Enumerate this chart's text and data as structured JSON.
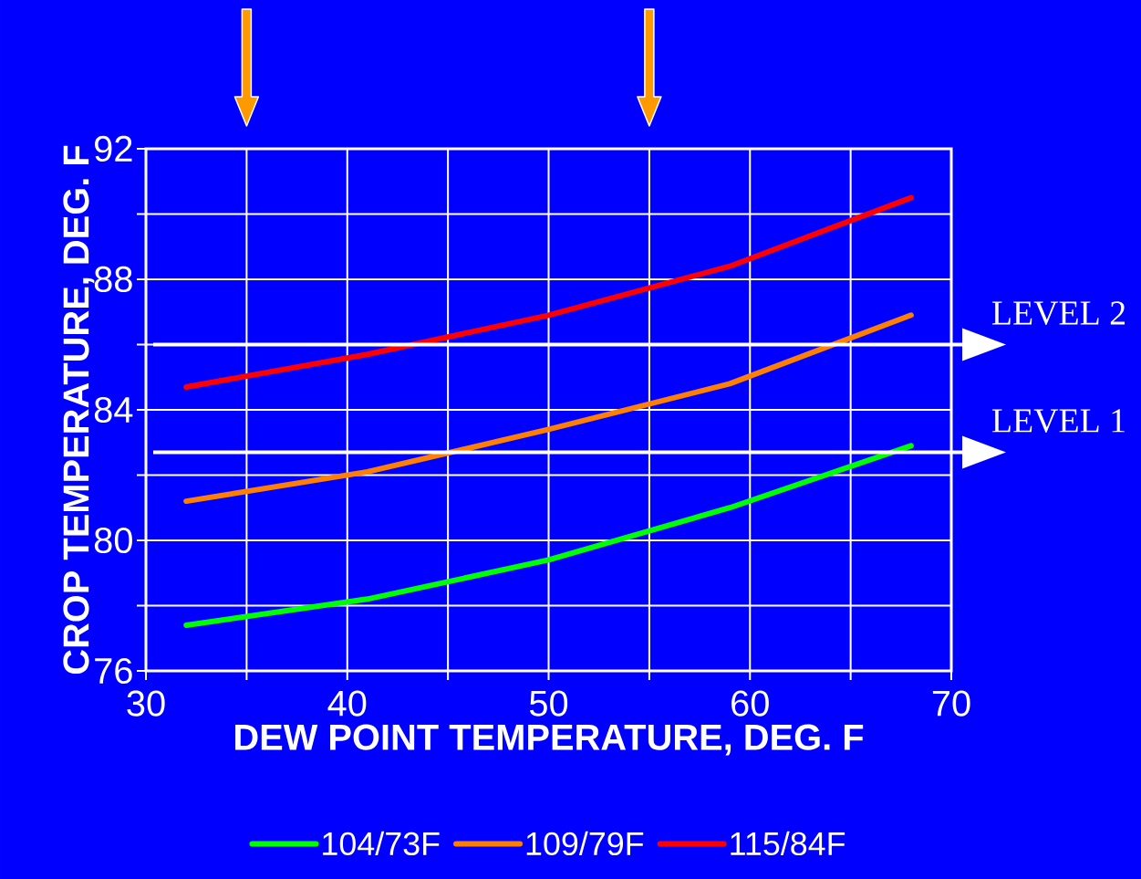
{
  "chart_data": {
    "type": "line",
    "xlabel": "DEW POINT TEMPERATURE, DEG. F",
    "ylabel": "CROP TEMPERATURE, DEG. F",
    "x": [
      32,
      41,
      50,
      59,
      68
    ],
    "series": [
      {
        "name": "104/73F",
        "color": "#00ff00",
        "values": [
          77.4,
          78.2,
          79.4,
          81.0,
          82.9
        ]
      },
      {
        "name": "109/79F",
        "color": "#ff8000",
        "values": [
          81.2,
          82.1,
          83.4,
          84.8,
          86.9
        ]
      },
      {
        "name": "115/84F",
        "color": "#ff0000",
        "values": [
          84.7,
          85.7,
          86.9,
          88.4,
          90.5
        ]
      }
    ],
    "xlim": [
      30,
      70
    ],
    "ylim": [
      76,
      92
    ],
    "xticks": [
      30,
      {
        "value": 35,
        "label": null
      },
      40,
      {
        "value": 45,
        "label": null
      },
      50,
      {
        "value": 55,
        "label": null
      },
      60,
      {
        "value": 65,
        "label": null
      },
      70
    ],
    "yticks": [
      76,
      {
        "value": 78,
        "label": null
      },
      80,
      {
        "value": 82,
        "label": null
      },
      84,
      {
        "value": 86,
        "label": null
      },
      88,
      {
        "value": 90,
        "label": null
      },
      92
    ],
    "ref_lines": [
      {
        "axis": "y",
        "value": 86.0,
        "label": "LEVEL 2",
        "color": "#ffffff"
      },
      {
        "axis": "y",
        "value": 82.7,
        "label": "LEVEL 1",
        "color": "#ffffff"
      }
    ],
    "grid": true,
    "legend": "bottom",
    "marker": "none",
    "line_style": "solid"
  }
}
